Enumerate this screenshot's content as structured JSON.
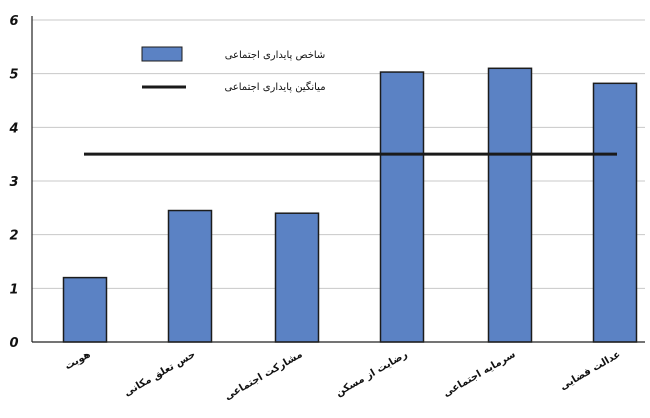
{
  "chart_data": {
    "type": "bar",
    "categories": [
      "هويت",
      "حس تعلق مکانی",
      "مشارکت اجتماعی",
      "رضايت از مسکن",
      "سرمايه اجتماعی",
      "عدالت فضايی"
    ],
    "series": [
      {
        "name": "شاخص پايداری اجتماعی",
        "type": "bar",
        "values": [
          1.2,
          2.45,
          2.4,
          5.03,
          5.1,
          4.82
        ]
      },
      {
        "name": "ميانگين پايداری اجتماعی",
        "type": "line",
        "value": 3.5
      }
    ],
    "ylim": [
      0,
      6
    ],
    "yticks": [
      "0",
      "1",
      "2",
      "3",
      "4",
      "5",
      "6"
    ],
    "xlabel": "",
    "ylabel": "",
    "grid": true,
    "legend": "top-left",
    "colors": {
      "bar_fill": "#5b82c4",
      "bar_stroke": "#1c1c1c",
      "line": "#1a1a1a",
      "grid": "#c8c8c8",
      "axis": "#222222"
    }
  }
}
